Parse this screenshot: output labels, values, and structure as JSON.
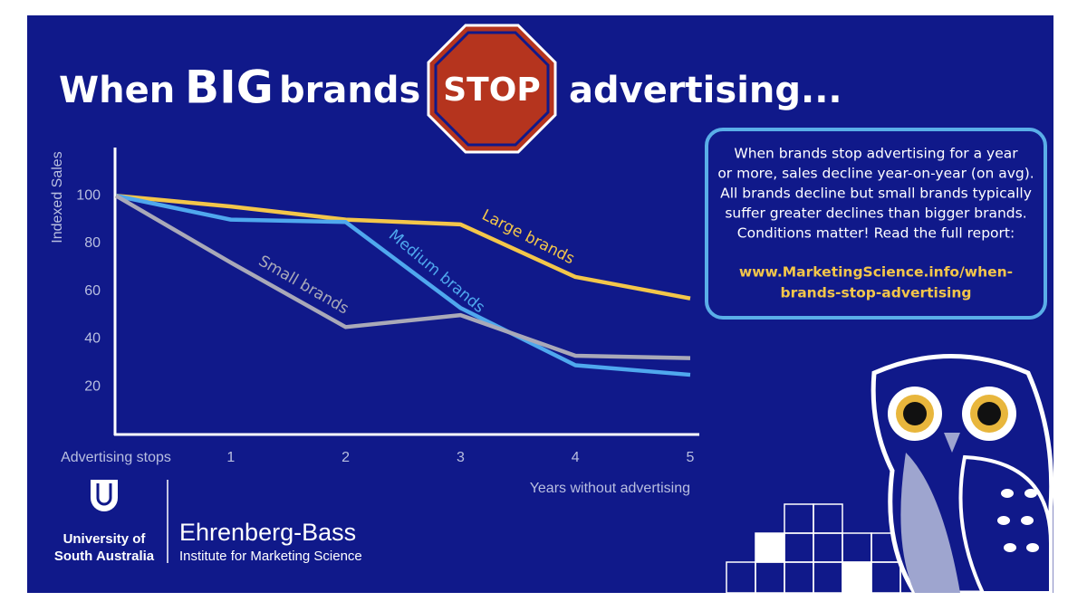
{
  "chart_data": {
    "type": "line",
    "title": {
      "before": "When",
      "emphasis": "BIG",
      "middle": "brands",
      "stop_sign": "STOP",
      "after": "advertising..."
    },
    "y_label": "Indexed Sales",
    "x_label": "Years without advertising",
    "categories": [
      "Advertising stops",
      "1",
      "2",
      "3",
      "4",
      "5"
    ],
    "ylim": [
      0,
      120
    ],
    "yticks": [
      20,
      40,
      60,
      80,
      100
    ],
    "grid": false,
    "series": [
      {
        "name": "Large brands",
        "color": "#f3c64a",
        "values": [
          100,
          95.5,
          90,
          88,
          66,
          57
        ]
      },
      {
        "name": "Medium brands",
        "color": "#4fa8ee",
        "values": [
          100,
          90,
          89,
          53,
          29,
          25
        ]
      },
      {
        "name": "Small brands",
        "color": "#a9a9b8",
        "values": [
          100,
          72,
          45,
          50,
          33,
          32
        ]
      }
    ]
  },
  "info_box": {
    "lines": [
      "When brands stop advertising for a year",
      "or more, sales decline year-on-year (on avg).",
      "All brands decline but small brands typically",
      "suffer greater declines than bigger brands.",
      "Conditions matter! Read the full report:"
    ],
    "url_lines": [
      "www.MarketingScience.info/when-",
      "brands-stop-advertising"
    ]
  },
  "logos": {
    "university": [
      "University of",
      "South Australia"
    ],
    "institute": "Ehrenberg-Bass",
    "institute_subtitle": "Institute for Marketing Science"
  }
}
